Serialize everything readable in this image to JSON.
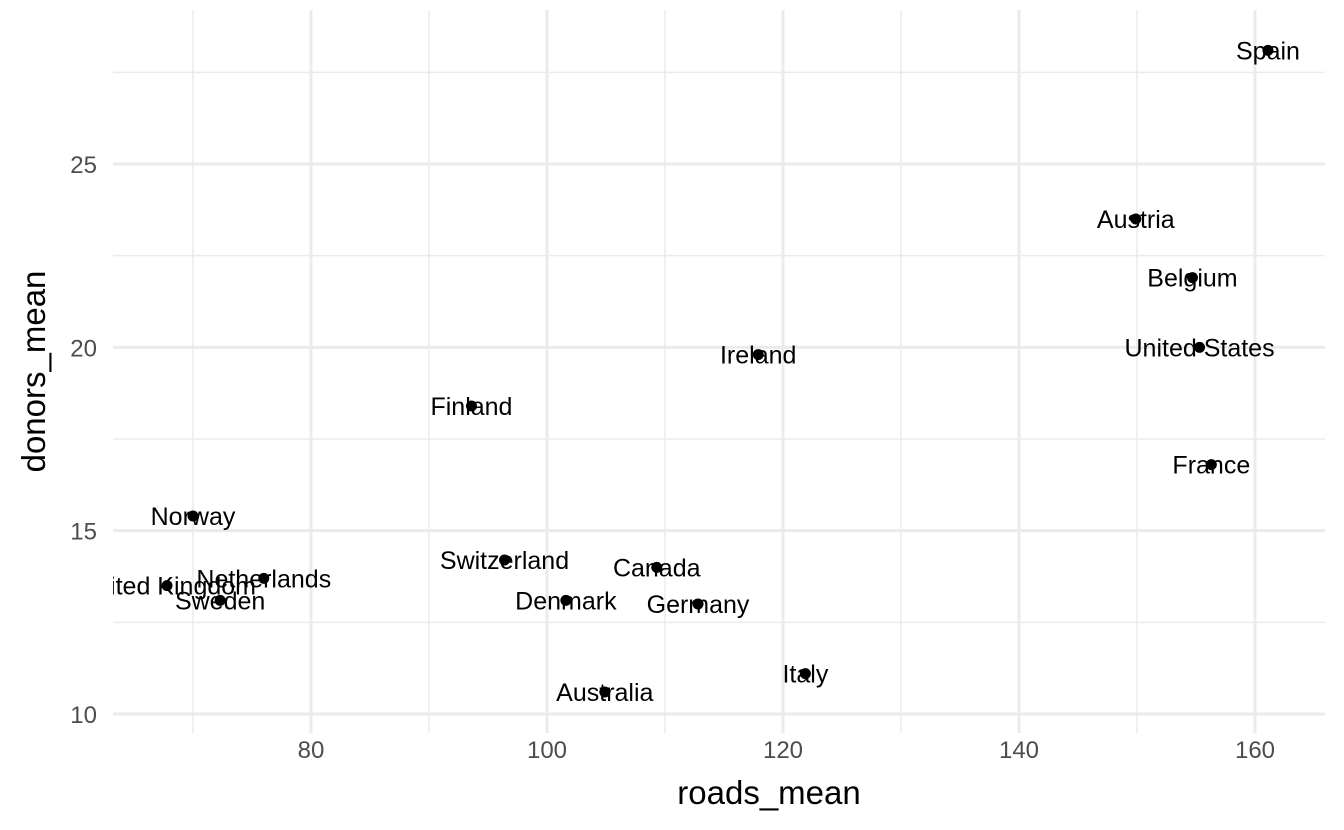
{
  "chart_data": {
    "type": "scatter",
    "title": "",
    "xlabel": "roads_mean",
    "ylabel": "donors_mean",
    "xlim": [
      63.5,
      166
    ],
    "ylim": [
      9.6,
      28.6
    ],
    "x_ticks": [
      80,
      100,
      120,
      140,
      160
    ],
    "x_minor_ticks": [
      70,
      90,
      110,
      130,
      150
    ],
    "y_ticks": [
      10,
      15,
      20,
      25
    ],
    "y_minor_ticks": [
      12.5,
      17.5,
      22.5,
      27.5
    ],
    "grid": true,
    "legend": "none",
    "point_color": "#000000",
    "points": [
      {
        "label": "Spain",
        "x": 161.1,
        "y": 28.1
      },
      {
        "label": "Austria",
        "x": 149.9,
        "y": 23.5
      },
      {
        "label": "Belgium",
        "x": 154.7,
        "y": 21.9
      },
      {
        "label": "United States",
        "x": 155.3,
        "y": 20.0
      },
      {
        "label": "Ireland",
        "x": 117.9,
        "y": 19.8
      },
      {
        "label": "Finland",
        "x": 93.6,
        "y": 18.4
      },
      {
        "label": "France",
        "x": 156.3,
        "y": 16.8
      },
      {
        "label": "Norway",
        "x": 70.0,
        "y": 15.4
      },
      {
        "label": "Switzerland",
        "x": 96.4,
        "y": 14.2
      },
      {
        "label": "Canada",
        "x": 109.3,
        "y": 14.0
      },
      {
        "label": "Netherlands",
        "x": 76.0,
        "y": 13.7
      },
      {
        "label": "United Kingdom",
        "x": 67.8,
        "y": 13.5
      },
      {
        "label": "Sweden",
        "x": 72.3,
        "y": 13.1
      },
      {
        "label": "Denmark",
        "x": 101.6,
        "y": 13.1
      },
      {
        "label": "Germany",
        "x": 112.8,
        "y": 13.0
      },
      {
        "label": "Italy",
        "x": 121.9,
        "y": 11.1
      },
      {
        "label": "Australia",
        "x": 104.9,
        "y": 10.6
      }
    ]
  }
}
